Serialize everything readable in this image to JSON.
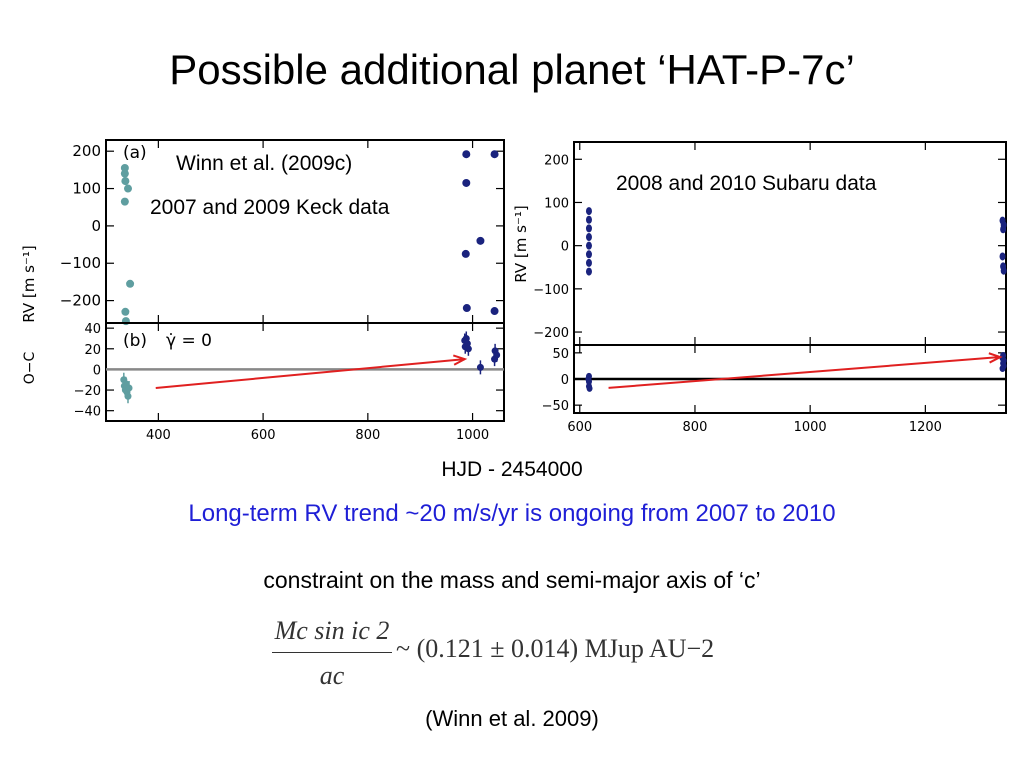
{
  "slide": {
    "title": "Possible additional planet ‘HAT-P-7c’",
    "note_keck_1": "Winn et al. (2009c)",
    "note_keck_2": "2007 and 2009 Keck data",
    "note_subaru": "2008 and 2010 Subaru data",
    "shared_xlabel": "HJD - 2454000",
    "trend_text": "Long-term RV trend ~20 m/s/yr is ongoing from 2007 to 2010",
    "constraint_text": "constraint on the mass and semi-major axis of ‘c’",
    "formula_numerator": "Mc sin ic 2",
    "formula_denominator": "ac",
    "formula_rhs": "~ (0.121 ± 0.014) MJup AU−2",
    "citation": "(Winn et al. 2009)"
  },
  "colors": {
    "keck_2007": "#5f9ea0",
    "keck_2009": "#1a237e",
    "subaru": "#1a237e",
    "trend_arrow": "#e02020",
    "trend_text": "#1f1fd6",
    "zero_line_a": "#888888",
    "zero_line_b": "#000000"
  },
  "chart_data": [
    {
      "type": "scatter",
      "panel": "(a)",
      "ylabel": "RV [m s⁻¹]",
      "xlim": [
        300,
        1060
      ],
      "ylim": [
        -260,
        230
      ],
      "xticks": [
        400,
        600,
        800,
        1000
      ],
      "yticks": [
        200,
        100,
        0,
        -100,
        -200
      ],
      "ytick_labels": [
        "200",
        "100",
        "0",
        "−100",
        "−200"
      ],
      "series": [
        {
          "values": [
            [
              336,
              155
            ],
            [
              336,
              140
            ],
            [
              337,
              120
            ],
            [
              342,
              100
            ],
            [
              336,
              65
            ],
            [
              346,
              -155
            ],
            [
              337,
              -230
            ],
            [
              338,
              -255
            ]
          ]
        },
        {
          "values": [
            [
              988,
              192
            ],
            [
              1042,
              192
            ],
            [
              988,
              115
            ],
            [
              987,
              -75
            ],
            [
              1015,
              -40
            ],
            [
              989,
              -220
            ],
            [
              1042,
              -228
            ]
          ]
        }
      ]
    },
    {
      "type": "scatter",
      "panel": "(b)",
      "label": "γ̇ = 0",
      "ylabel": "O−C",
      "xlim": [
        300,
        1060
      ],
      "ylim": [
        -50,
        45
      ],
      "xticks": [
        400,
        600,
        800,
        1000
      ],
      "xtick_labels": [
        "400",
        "600",
        "800",
        "1000"
      ],
      "yticks": [
        40,
        20,
        0,
        -20,
        -40
      ],
      "ytick_labels": [
        "40",
        "20",
        "0",
        "−20",
        "−40"
      ],
      "series": [
        {
          "values": [
            [
              334,
              -10
            ],
            [
              335,
              -16
            ],
            [
              337,
              -20
            ],
            [
              338,
              -14
            ],
            [
              340,
              -22
            ],
            [
              342,
              -26
            ],
            [
              344,
              -18
            ]
          ]
        },
        {
          "values": [
            [
              985,
              28
            ],
            [
              986,
              22
            ],
            [
              988,
              30
            ],
            [
              990,
              25
            ],
            [
              992,
              20
            ],
            [
              1015,
              2
            ],
            [
              1042,
              10
            ],
            [
              1043,
              18
            ],
            [
              1046,
              14
            ]
          ]
        }
      ],
      "trend_arrow": {
        "from": [
          395,
          -18
        ],
        "to": [
          985,
          10
        ]
      }
    },
    {
      "type": "scatter",
      "panel": "top",
      "ylabel": "RV [m s⁻¹]",
      "xlim": [
        590,
        1340
      ],
      "ylim": [
        -230,
        240
      ],
      "xticks": [
        600,
        800,
        1000,
        1200
      ],
      "yticks": [
        200,
        100,
        0,
        -100,
        -200
      ],
      "ytick_labels": [
        "200",
        "100",
        "0",
        "−100",
        "−200"
      ],
      "series": [
        {
          "values": [
            [
              616,
              80
            ],
            [
              616,
              60
            ],
            [
              616,
              40
            ],
            [
              616,
              20
            ],
            [
              616,
              0
            ],
            [
              616,
              -20
            ],
            [
              616,
              -40
            ],
            [
              616,
              -60
            ]
          ]
        },
        {
          "values": [
            [
              1334,
              58
            ],
            [
              1336,
              48
            ],
            [
              1335,
              38
            ],
            [
              1334,
              -25
            ],
            [
              1335,
              -48
            ],
            [
              1336,
              -58
            ]
          ]
        }
      ]
    },
    {
      "type": "scatter",
      "panel": "bottom",
      "xlim": [
        590,
        1340
      ],
      "ylim": [
        -65,
        65
      ],
      "xticks": [
        600,
        800,
        1000,
        1200
      ],
      "xtick_labels": [
        "600",
        "800",
        "1000",
        "1200"
      ],
      "yticks": [
        50,
        0,
        -50
      ],
      "ytick_labels": [
        "50",
        "0",
        "−50"
      ],
      "series": [
        {
          "values": [
            [
              616,
              -14
            ],
            [
              616,
              -5
            ],
            [
              616,
              5
            ],
            [
              617,
              -18
            ],
            [
              615,
              0
            ]
          ]
        },
        {
          "values": [
            [
              1334,
              40
            ],
            [
              1335,
              30
            ],
            [
              1336,
              25
            ],
            [
              1334,
              20
            ],
            [
              1335,
              45
            ],
            [
              1336,
              35
            ]
          ]
        }
      ],
      "trend_arrow": {
        "from": [
          650,
          -17
        ],
        "to": [
          1330,
          42
        ]
      }
    }
  ]
}
